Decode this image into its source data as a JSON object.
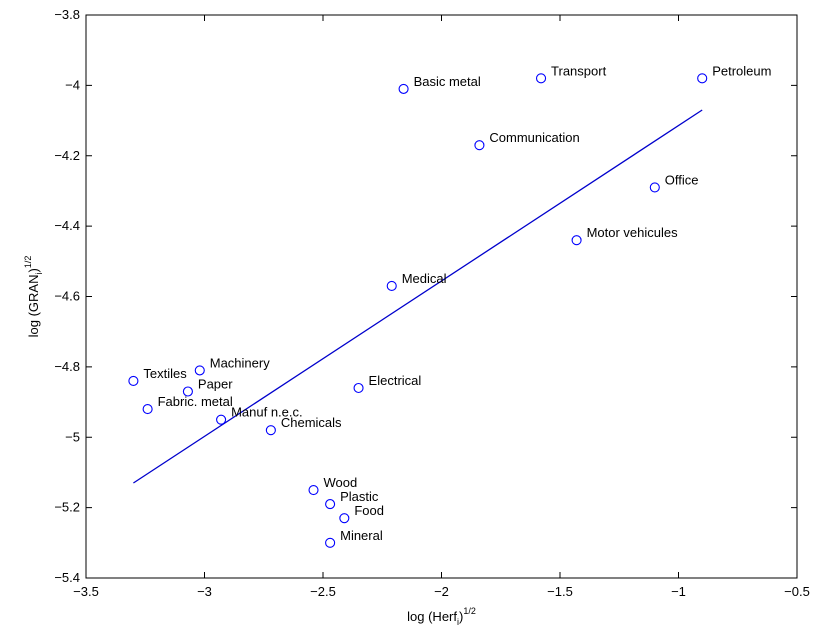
{
  "chart_data": {
    "type": "scatter",
    "title": "",
    "xlabel": {
      "main": "log (Herf",
      "sub": "i",
      "close": ")",
      "sup": "1/2"
    },
    "ylabel": {
      "main": "log (GRAN",
      "sub": "i",
      "close": ")",
      "sup": "1/2"
    },
    "xlim": [
      -3.5,
      -0.5
    ],
    "ylim": [
      -5.4,
      -3.8
    ],
    "xticks": [
      -3.5,
      -3,
      -2.5,
      -2,
      -1.5,
      -1,
      -0.5
    ],
    "xtick_labels": [
      "−3.5",
      "−3",
      "−2.5",
      "−2",
      "−1.5",
      "−1",
      "−0.5"
    ],
    "yticks": [
      -3.8,
      -4,
      -4.2,
      -4.4,
      -4.6,
      -4.8,
      -5,
      -5.2,
      -5.4
    ],
    "ytick_labels": [
      "−3.8",
      "−4",
      "−4.2",
      "−4.4",
      "−4.6",
      "−4.8",
      "−5",
      "−5.2",
      "−5.4"
    ],
    "grid": false,
    "colors": {
      "points": "#0000ff",
      "fit_line": "#0000cc",
      "axes": "#000000"
    },
    "points": [
      {
        "label": "Petroleum",
        "x": -0.9,
        "y": -3.98
      },
      {
        "label": "Transport",
        "x": -1.58,
        "y": -3.98
      },
      {
        "label": "Basic metal",
        "x": -2.16,
        "y": -4.01
      },
      {
        "label": "Communication",
        "x": -1.84,
        "y": -4.17
      },
      {
        "label": "Office",
        "x": -1.1,
        "y": -4.29
      },
      {
        "label": "Motor vehicules",
        "x": -1.43,
        "y": -4.44
      },
      {
        "label": "Medical",
        "x": -2.21,
        "y": -4.57
      },
      {
        "label": "Machinery",
        "x": -3.02,
        "y": -4.81
      },
      {
        "label": "Textiles",
        "x": -3.3,
        "y": -4.84
      },
      {
        "label": "Paper",
        "x": -3.07,
        "y": -4.87
      },
      {
        "label": "Electrical",
        "x": -2.35,
        "y": -4.86
      },
      {
        "label": "Fabric. metal",
        "x": -3.24,
        "y": -4.92
      },
      {
        "label": "Manuf n.e.c.",
        "x": -2.93,
        "y": -4.95
      },
      {
        "label": "Chemicals",
        "x": -2.72,
        "y": -4.98
      },
      {
        "label": "Wood",
        "x": -2.54,
        "y": -5.15
      },
      {
        "label": "Plastic",
        "x": -2.47,
        "y": -5.19
      },
      {
        "label": "Food",
        "x": -2.41,
        "y": -5.23
      },
      {
        "label": "Mineral",
        "x": -2.47,
        "y": -5.3
      }
    ],
    "fit_line": {
      "x": [
        -3.3,
        -0.9
      ],
      "y": [
        -5.13,
        -4.07
      ]
    }
  }
}
